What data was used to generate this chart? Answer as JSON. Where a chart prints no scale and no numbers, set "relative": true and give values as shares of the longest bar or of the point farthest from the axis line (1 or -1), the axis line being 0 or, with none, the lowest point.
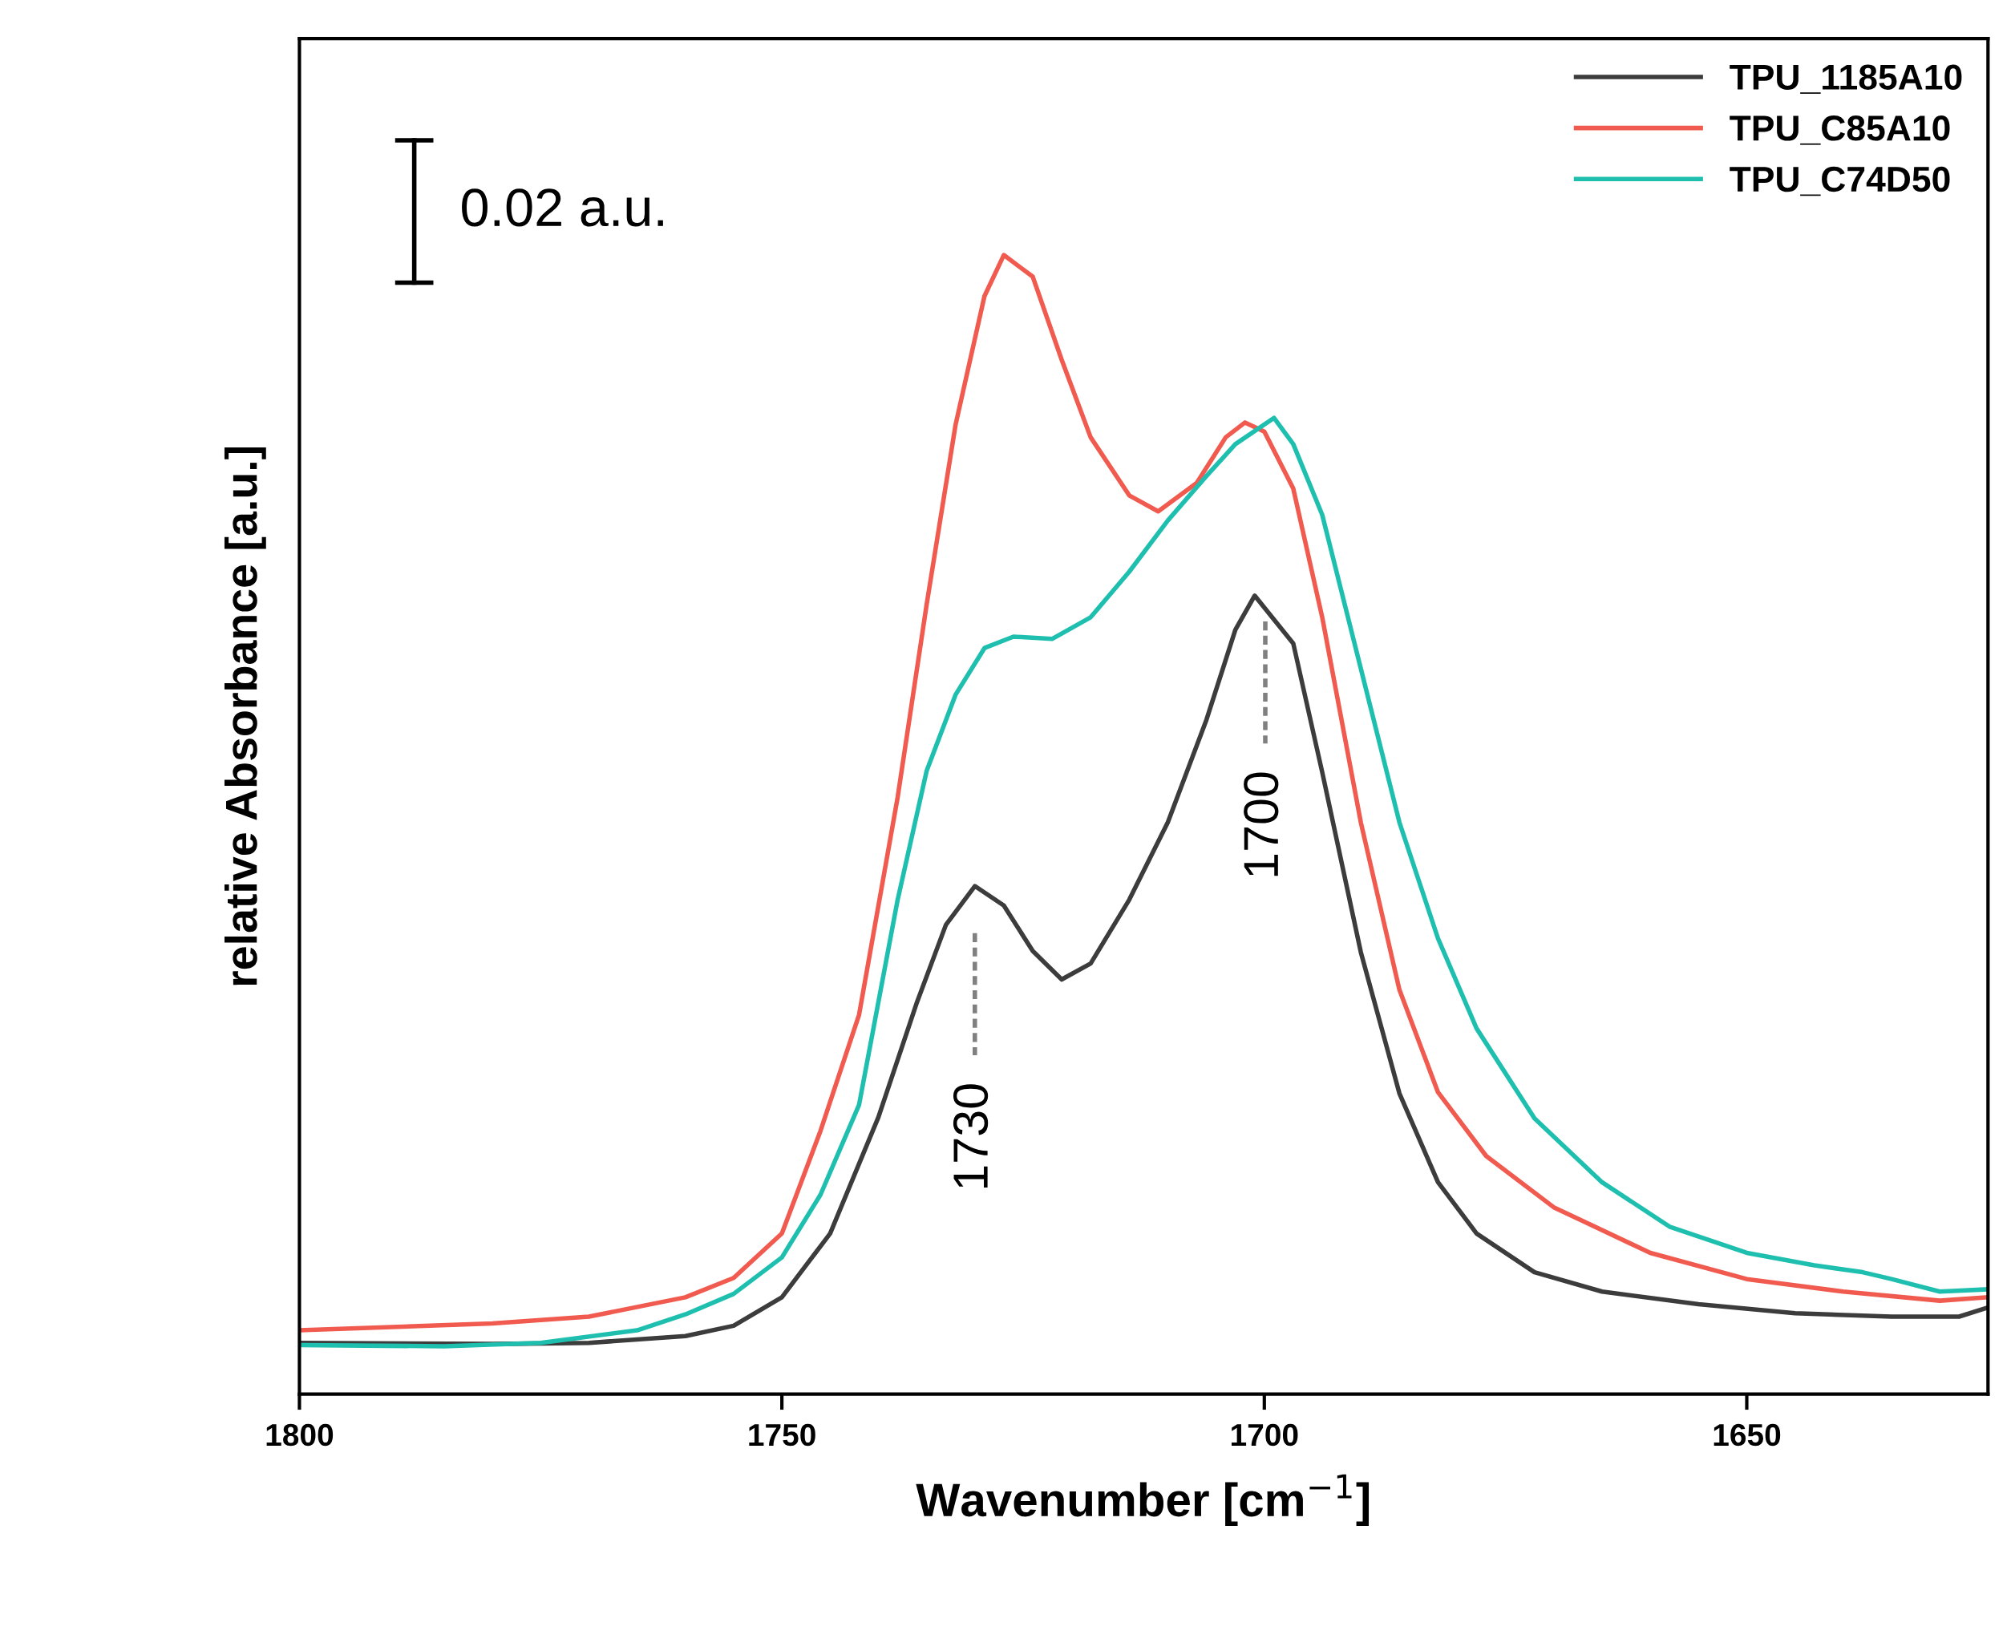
{
  "chart_data": {
    "type": "line",
    "relative": true,
    "xlabel": "Wavenumber [cm$^{−1}$]",
    "ylabel": "relative Absorbance [a.u.]",
    "xlim": [
      1800,
      1625
    ],
    "xticks": [
      1800,
      1750,
      1700,
      1650
    ],
    "legend": "top right",
    "tick_labels": "x",
    "line_style": "solid",
    "marker": "none",
    "annotations": [
      "0.02 a.u.",
      "1730",
      "1700"
    ],
    "series": [
      {
        "name": "TPU_1185A10",
        "color": "#3c3c3c",
        "x": [
          1800,
          1780,
          1770,
          1760,
          1755,
          1750,
          1745,
          1740,
          1736,
          1733,
          1730,
          1727,
          1724,
          1721,
          1718,
          1714,
          1710,
          1706,
          1703,
          1701,
          1697,
          1694,
          1690,
          1686,
          1682,
          1678,
          1672,
          1665,
          1655,
          1645,
          1635,
          1628,
          1625
        ],
        "values": [
          0.045,
          0.044,
          0.045,
          0.051,
          0.06,
          0.085,
          0.141,
          0.243,
          0.344,
          0.412,
          0.446,
          0.429,
          0.389,
          0.364,
          0.378,
          0.434,
          0.502,
          0.592,
          0.671,
          0.701,
          0.659,
          0.546,
          0.388,
          0.264,
          0.186,
          0.141,
          0.107,
          0.09,
          0.079,
          0.071,
          0.068,
          0.068,
          0.076
        ]
      },
      {
        "name": "TPU_C85A10",
        "color": "#f05a4f",
        "x": [
          1800,
          1780,
          1770,
          1760,
          1755,
          1750,
          1746,
          1742,
          1738,
          1735,
          1732,
          1729,
          1727,
          1724,
          1721,
          1718,
          1714,
          1711,
          1707,
          1704,
          1702,
          1700,
          1697,
          1694,
          1690,
          1686,
          1682,
          1677,
          1670,
          1660,
          1650,
          1640,
          1630,
          1625
        ],
        "values": [
          0.056,
          0.062,
          0.068,
          0.085,
          0.102,
          0.141,
          0.231,
          0.333,
          0.524,
          0.693,
          0.851,
          0.964,
          1,
          0.981,
          0.908,
          0.84,
          0.789,
          0.775,
          0.8,
          0.84,
          0.853,
          0.845,
          0.795,
          0.682,
          0.502,
          0.355,
          0.265,
          0.209,
          0.164,
          0.124,
          0.101,
          0.09,
          0.082,
          0.085
        ]
      },
      {
        "name": "TPU_C74D50",
        "color": "#1fbfb0",
        "x": [
          1800,
          1785,
          1775,
          1765,
          1760,
          1755,
          1750,
          1746,
          1742,
          1738,
          1735,
          1732,
          1729,
          1726,
          1722,
          1718,
          1714,
          1710,
          1706,
          1703,
          1699,
          1697,
          1694,
          1690,
          1686,
          1682,
          1678,
          1672,
          1665,
          1658,
          1650,
          1643,
          1638,
          1635,
          1630,
          1625
        ],
        "values": [
          0.043,
          0.042,
          0.045,
          0.056,
          0.07,
          0.088,
          0.12,
          0.175,
          0.254,
          0.434,
          0.547,
          0.614,
          0.655,
          0.665,
          0.663,
          0.682,
          0.722,
          0.767,
          0.806,
          0.834,
          0.857,
          0.834,
          0.772,
          0.637,
          0.502,
          0.4,
          0.321,
          0.242,
          0.186,
          0.147,
          0.124,
          0.113,
          0.107,
          0.101,
          0.09,
          0.092
        ]
      }
    ]
  }
}
